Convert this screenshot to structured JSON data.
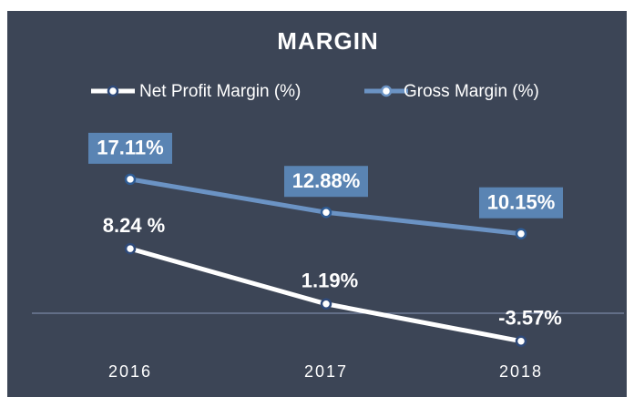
{
  "chart_data": {
    "type": "line",
    "title": "MARGIN",
    "categories": [
      "2016",
      "2017",
      "2018"
    ],
    "series": [
      {
        "name": "Net Profit Margin (%)",
        "color": "#ffffff",
        "values": [
          8.24,
          1.19,
          -3.57
        ],
        "value_labels": [
          "8.24 %",
          "1.19%",
          "-3.57%"
        ]
      },
      {
        "name": "Gross Margin (%)",
        "color": "#6b93c4",
        "values": [
          17.11,
          12.88,
          10.15
        ],
        "value_labels": [
          "17.11%",
          "12.88%",
          "10.15%"
        ]
      }
    ],
    "ylim": [
      -5,
      20
    ],
    "background": "#3c4556",
    "legend": "top"
  }
}
